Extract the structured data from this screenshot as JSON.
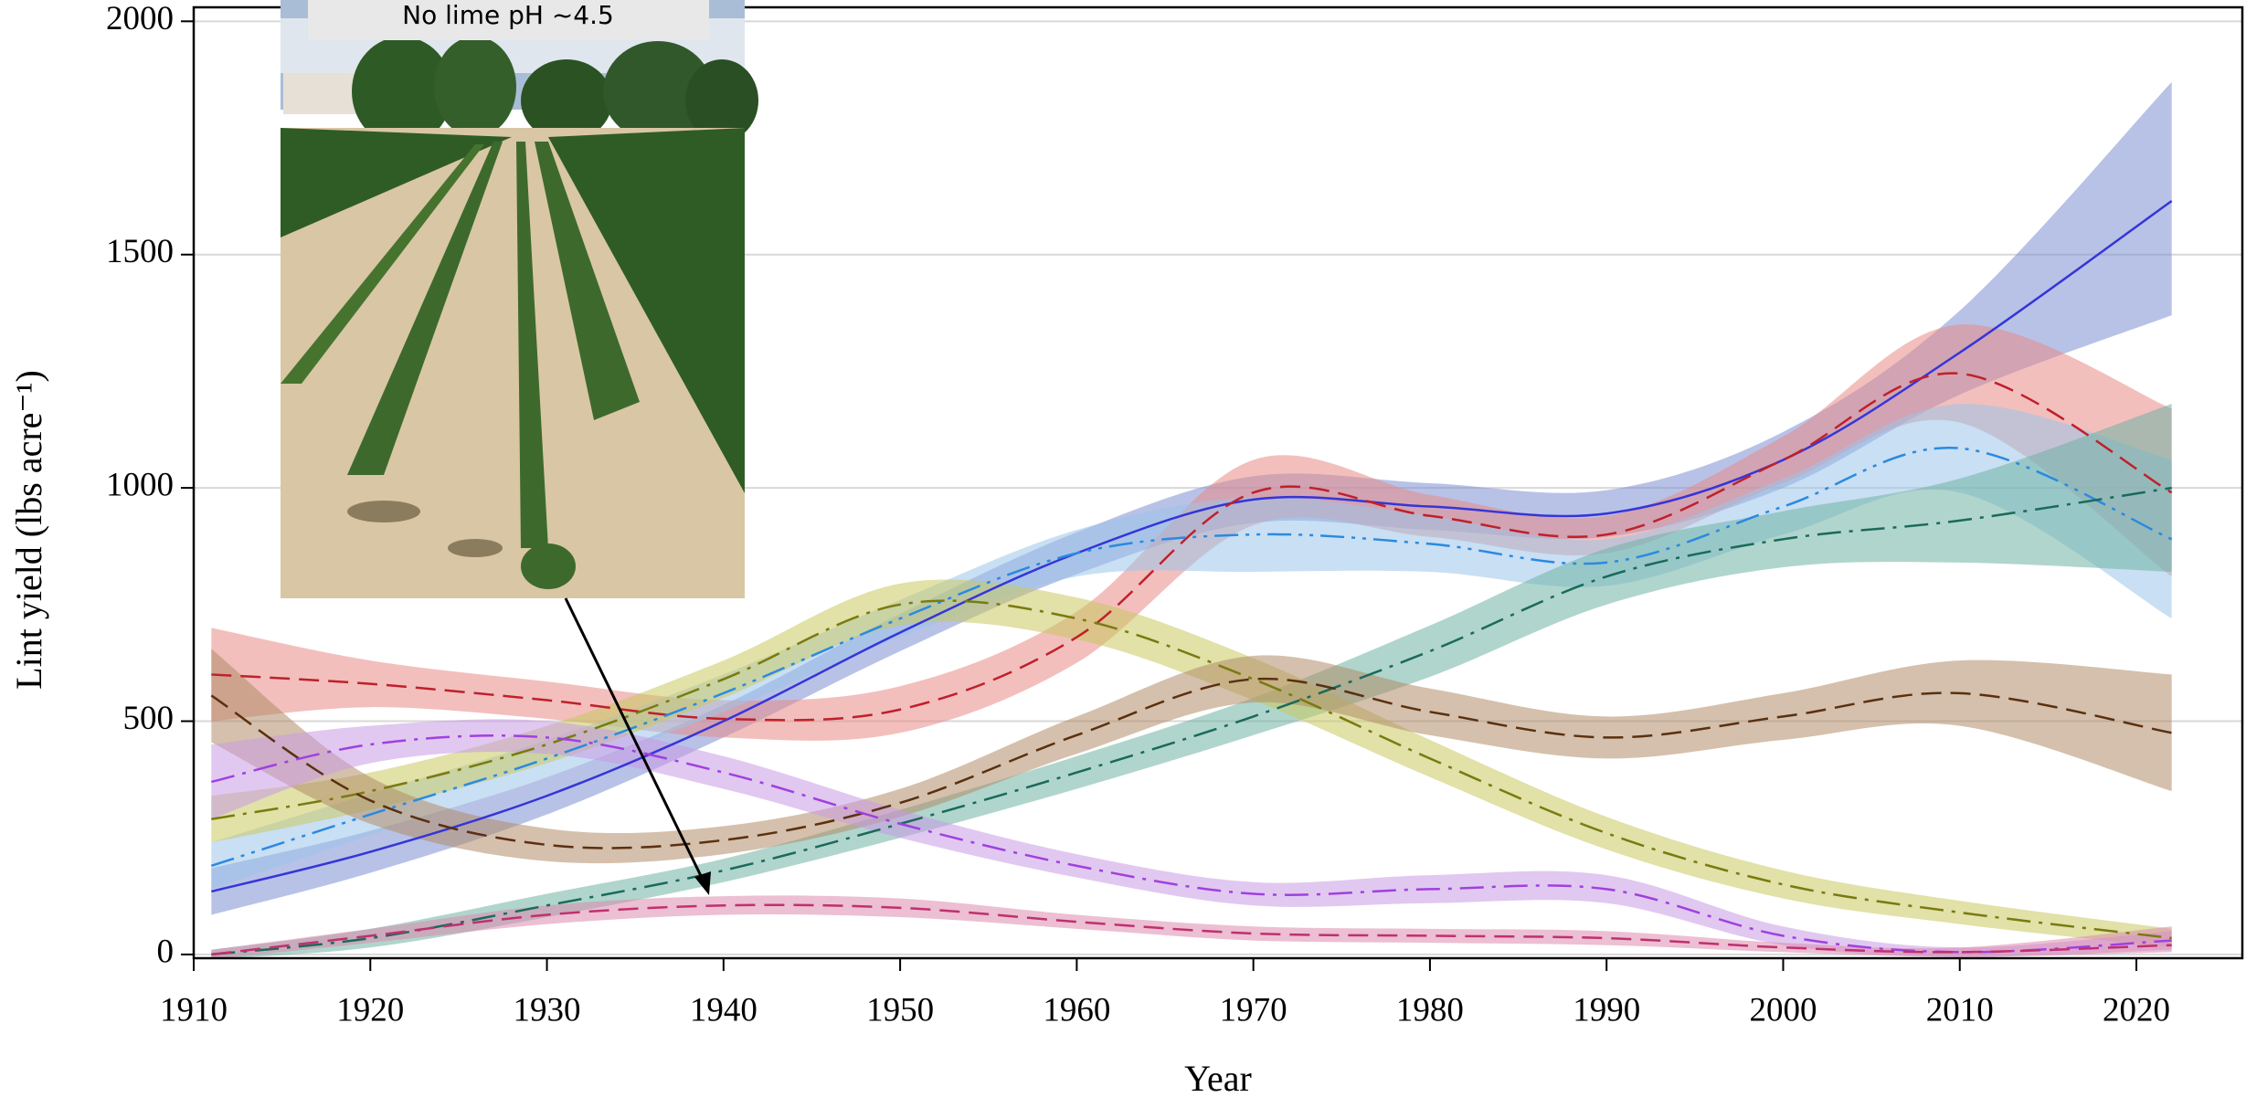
{
  "chart_data": {
    "type": "line",
    "xlabel": "Year",
    "ylabel": "Lint yield (lbs acre⁻¹)",
    "annotation": "No lime pH ~4.5",
    "xlim": [
      1910,
      2026
    ],
    "ylim": [
      -8,
      2030
    ],
    "xticks": [
      1910,
      1920,
      1930,
      1940,
      1950,
      1960,
      1970,
      1980,
      1990,
      2000,
      2010,
      2020
    ],
    "yticks": [
      0,
      500,
      1000,
      1500,
      2000
    ],
    "grid": true,
    "x": [
      1911,
      1920,
      1930,
      1940,
      1950,
      1960,
      1970,
      1980,
      1990,
      2000,
      2010,
      2022
    ],
    "series": [
      {
        "color": "#3535d8",
        "band_color": "#7e90d4",
        "linestyle": "solid",
        "values": [
          135,
          220,
          340,
          500,
          690,
          860,
          975,
          960,
          945,
          1060,
          1290,
          1615
        ],
        "lower": [
          85,
          175,
          300,
          465,
          650,
          815,
          925,
          910,
          895,
          1000,
          1200,
          1370
        ],
        "upper": [
          185,
          265,
          380,
          535,
          730,
          905,
          1025,
          1010,
          995,
          1120,
          1380,
          1870
        ]
      },
      {
        "color": "#c0202a",
        "band_color": "#e88a86",
        "linestyle": "dashed",
        "values": [
          600,
          580,
          545,
          505,
          525,
          680,
          990,
          940,
          900,
          1060,
          1245,
          990
        ],
        "lower": [
          500,
          530,
          505,
          465,
          475,
          625,
          920,
          895,
          860,
          1010,
          1140,
          810
        ],
        "upper": [
          700,
          630,
          585,
          545,
          575,
          735,
          1060,
          985,
          940,
          1110,
          1350,
          1170
        ]
      },
      {
        "color": "#2a8ae0",
        "band_color": "#9cc4ea",
        "linestyle": "dashdotdot",
        "values": [
          190,
          300,
          420,
          560,
          720,
          860,
          900,
          880,
          840,
          960,
          1085,
          890
        ],
        "lower": [
          140,
          255,
          380,
          520,
          680,
          810,
          820,
          820,
          790,
          900,
          990,
          720
        ],
        "upper": [
          240,
          345,
          460,
          600,
          760,
          910,
          980,
          940,
          890,
          1020,
          1180,
          1060
        ]
      },
      {
        "color": "#1a6a5a",
        "band_color": "#6fb2a4",
        "linestyle": "dashdot",
        "values": [
          0,
          35,
          105,
          180,
          280,
          390,
          510,
          650,
          810,
          890,
          930,
          1000
        ],
        "lower": [
          -10,
          15,
          80,
          155,
          250,
          355,
          470,
          595,
          750,
          830,
          840,
          820
        ],
        "upper": [
          10,
          55,
          130,
          205,
          310,
          425,
          550,
          705,
          870,
          950,
          1020,
          1180
        ]
      },
      {
        "color": "#7a7a10",
        "band_color": "#c8c860",
        "linestyle": "dashdot",
        "values": [
          290,
          350,
          450,
          590,
          750,
          720,
          590,
          420,
          260,
          150,
          90,
          35
        ],
        "lower": [
          240,
          310,
          410,
          550,
          705,
          675,
          545,
          380,
          225,
          120,
          65,
          15
        ],
        "upper": [
          340,
          390,
          490,
          630,
          795,
          765,
          635,
          460,
          295,
          180,
          115,
          55
        ]
      },
      {
        "color": "#5a3010",
        "band_color": "#b08c68",
        "linestyle": "dashed",
        "values": [
          555,
          330,
          235,
          245,
          325,
          470,
          590,
          520,
          465,
          510,
          560,
          475
        ],
        "lower": [
          455,
          280,
          200,
          215,
          295,
          430,
          540,
          470,
          420,
          460,
          490,
          350
        ],
        "upper": [
          655,
          380,
          270,
          275,
          355,
          510,
          640,
          570,
          510,
          560,
          630,
          600
        ]
      },
      {
        "color": "#a040e0",
        "band_color": "#c89ae4",
        "linestyle": "dashdot",
        "values": [
          370,
          450,
          465,
          390,
          280,
          190,
          130,
          140,
          140,
          40,
          5,
          30
        ],
        "lower": [
          290,
          410,
          430,
          355,
          250,
          165,
          105,
          110,
          110,
          20,
          -5,
          10
        ],
        "upper": [
          450,
          490,
          500,
          425,
          310,
          215,
          155,
          170,
          170,
          60,
          15,
          50
        ]
      },
      {
        "color": "#c03070",
        "band_color": "#dc8aae",
        "linestyle": "dashed",
        "values": [
          0,
          40,
          85,
          105,
          100,
          70,
          45,
          40,
          35,
          15,
          5,
          20
        ],
        "lower": [
          -10,
          25,
          65,
          85,
          80,
          55,
          30,
          25,
          20,
          5,
          -5,
          5
        ],
        "upper": [
          10,
          55,
          105,
          125,
          120,
          85,
          60,
          55,
          50,
          25,
          15,
          60
        ]
      }
    ]
  }
}
